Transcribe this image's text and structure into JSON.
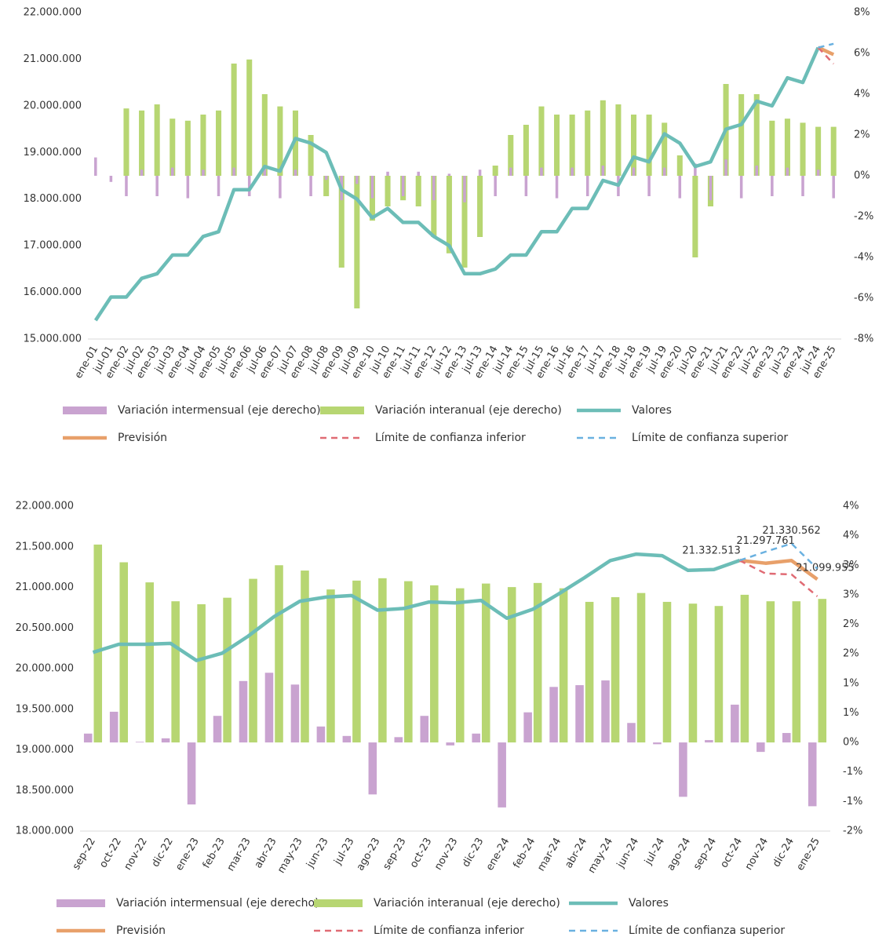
{
  "chart_data": [
    {
      "type": "combo",
      "bar_layout": "overlap",
      "categories": [
        "ene-01",
        "jul-01",
        "ene-02",
        "jul-02",
        "ene-03",
        "jul-03",
        "ene-04",
        "jul-04",
        "ene-05",
        "jul-05",
        "ene-06",
        "jul-06",
        "ene-07",
        "jul-07",
        "ene-08",
        "jul-08",
        "ene-09",
        "jul-09",
        "ene-10",
        "jul-10",
        "ene-11",
        "jul-11",
        "ene-12",
        "jul-12",
        "ene-13",
        "jul-13",
        "ene-14",
        "jul-14",
        "ene-15",
        "jul-15",
        "ene-16",
        "jul-16",
        "ene-17",
        "jul-17",
        "ene-18",
        "jul-18",
        "ene-19",
        "jul-19",
        "ene-20",
        "jul-20",
        "ene-21",
        "jul-21",
        "ene-22",
        "jul-22",
        "ene-23",
        "jul-23",
        "ene-24",
        "jul-24",
        "ene-25"
      ],
      "ylim": [
        15000000,
        22000000
      ],
      "yticks": [
        {
          "value": 15000000,
          "label": "15.000.000"
        },
        {
          "value": 16000000,
          "label": "16.000.000"
        },
        {
          "value": 17000000,
          "label": "17.000.000"
        },
        {
          "value": 18000000,
          "label": "18.000.000"
        },
        {
          "value": 19000000,
          "label": "19.000.000"
        },
        {
          "value": 20000000,
          "label": "20.000.000"
        },
        {
          "value": 21000000,
          "label": "21.000.000"
        },
        {
          "value": 22000000,
          "label": "22.000.000"
        }
      ],
      "y2lim": [
        -8,
        8
      ],
      "y2ticks": [
        {
          "value": -8,
          "label": "-8%"
        },
        {
          "value": -6,
          "label": "-6%"
        },
        {
          "value": -4,
          "label": "-4%"
        },
        {
          "value": -2,
          "label": "-2%"
        },
        {
          "value": 0,
          "label": "0%"
        },
        {
          "value": 2,
          "label": "2%"
        },
        {
          "value": 4,
          "label": "4%"
        },
        {
          "value": 6,
          "label": "6%"
        },
        {
          "value": 8,
          "label": "8%"
        }
      ],
      "series": [
        {
          "name": "Variación intermensual (eje derecho)",
          "type": "bar",
          "axis": "y2",
          "color": "#c9a3d0",
          "values": [
            0.9,
            -0.3,
            -1.0,
            0.3,
            -1.0,
            0.4,
            -1.1,
            0.3,
            -1.0,
            0.4,
            -1.0,
            0.5,
            -1.1,
            0.3,
            -1.0,
            -0.2,
            -1.2,
            -0.4,
            -1.1,
            0.2,
            -1.0,
            0.2,
            -1.2,
            0.1,
            -1.3,
            0.3,
            -1.0,
            0.4,
            -1.0,
            0.4,
            -1.1,
            0.4,
            -1.0,
            0.5,
            -1.0,
            0.4,
            -1.0,
            0.4,
            -1.1,
            0.6,
            -1.2,
            0.8,
            -1.1,
            0.5,
            -1.0,
            0.4,
            -1.0,
            0.3,
            -1.1
          ]
        },
        {
          "name": "Variación interanual (eje derecho)",
          "type": "bar",
          "axis": "y2",
          "color": "#b7d672",
          "values": [
            null,
            null,
            3.3,
            3.2,
            3.5,
            2.8,
            2.7,
            3.0,
            3.2,
            5.5,
            5.7,
            4.0,
            3.4,
            3.2,
            2.0,
            -1.0,
            -4.5,
            -6.5,
            -2.2,
            -1.5,
            -1.2,
            -1.5,
            -3.0,
            -3.8,
            -4.5,
            -3.0,
            0.5,
            2.0,
            2.5,
            3.4,
            3.0,
            3.0,
            3.2,
            3.7,
            3.5,
            3.0,
            3.0,
            2.6,
            1.0,
            -4.0,
            -1.5,
            4.5,
            4.0,
            4.0,
            2.7,
            2.8,
            2.6,
            2.4,
            2.4
          ]
        },
        {
          "name": "Valores",
          "type": "line",
          "color": "#6cbdb7",
          "values": [
            15400000,
            15900000,
            15900000,
            16300000,
            16400000,
            16800000,
            16800000,
            17200000,
            17300000,
            18200000,
            18200000,
            18700000,
            18600000,
            19300000,
            19200000,
            19000000,
            18200000,
            18000000,
            17600000,
            17800000,
            17500000,
            17500000,
            17200000,
            17000000,
            16400000,
            16400000,
            16500000,
            16800000,
            16800000,
            17300000,
            17300000,
            17800000,
            17800000,
            18400000,
            18300000,
            18900000,
            18800000,
            19400000,
            19200000,
            18700000,
            18800000,
            19500000,
            19600000,
            20100000,
            20000000,
            20600000,
            20500000,
            21250000,
            null
          ]
        },
        {
          "name": "Previsión",
          "type": "line",
          "color": "#e8a06a",
          "values": [
            null,
            null,
            null,
            null,
            null,
            null,
            null,
            null,
            null,
            null,
            null,
            null,
            null,
            null,
            null,
            null,
            null,
            null,
            null,
            null,
            null,
            null,
            null,
            null,
            null,
            null,
            null,
            null,
            null,
            null,
            null,
            null,
            null,
            null,
            null,
            null,
            null,
            null,
            null,
            null,
            null,
            null,
            null,
            null,
            null,
            null,
            null,
            21250000,
            21100000
          ]
        },
        {
          "name": "Límite de confianza inferior",
          "type": "line",
          "dash": true,
          "color": "#e06b74",
          "values": [
            null,
            null,
            null,
            null,
            null,
            null,
            null,
            null,
            null,
            null,
            null,
            null,
            null,
            null,
            null,
            null,
            null,
            null,
            null,
            null,
            null,
            null,
            null,
            null,
            null,
            null,
            null,
            null,
            null,
            null,
            null,
            null,
            null,
            null,
            null,
            null,
            null,
            null,
            null,
            null,
            null,
            null,
            null,
            null,
            null,
            null,
            null,
            21250000,
            20900000
          ]
        },
        {
          "name": "Límite de confianza superior",
          "type": "line",
          "dash": true,
          "color": "#6ab1e0",
          "values": [
            null,
            null,
            null,
            null,
            null,
            null,
            null,
            null,
            null,
            null,
            null,
            null,
            null,
            null,
            null,
            null,
            null,
            null,
            null,
            null,
            null,
            null,
            null,
            null,
            null,
            null,
            null,
            null,
            null,
            null,
            null,
            null,
            null,
            null,
            null,
            null,
            null,
            null,
            null,
            null,
            null,
            null,
            null,
            null,
            null,
            null,
            null,
            21250000,
            21330000
          ]
        }
      ]
    },
    {
      "type": "combo",
      "bar_layout": "grouped",
      "categories": [
        "sep-22",
        "oct-22",
        "nov-22",
        "dic-22",
        "ene-23",
        "feb-23",
        "mar-23",
        "abr-23",
        "may-23",
        "jun-23",
        "jul-23",
        "ago-23",
        "sep-23",
        "oct-23",
        "nov-23",
        "dic-23",
        "ene-24",
        "feb-24",
        "mar-24",
        "abr-24",
        "may-24",
        "jun-24",
        "jul-24",
        "ago-24",
        "sep-24",
        "oct-24",
        "nov-24",
        "dic-24",
        "ene-25"
      ],
      "ylim": [
        18000000,
        22000000
      ],
      "yticks": [
        {
          "value": 18000000,
          "label": "18.000.000"
        },
        {
          "value": 18500000,
          "label": "18.500.000"
        },
        {
          "value": 19000000,
          "label": "19.000.000"
        },
        {
          "value": 19500000,
          "label": "19.500.000"
        },
        {
          "value": 20000000,
          "label": "20.000.000"
        },
        {
          "value": 20500000,
          "label": "20.500.000"
        },
        {
          "value": 21000000,
          "label": "21.000.000"
        },
        {
          "value": 21500000,
          "label": "21.500.000"
        },
        {
          "value": 22000000,
          "label": "22.000.000"
        }
      ],
      "y2lim": [
        -1.5,
        4
      ],
      "y2ticks": [
        {
          "value": -1.5,
          "label": "-2%"
        },
        {
          "value": -1,
          "label": "-1%"
        },
        {
          "value": -0.5,
          "label": "-1%"
        },
        {
          "value": 0,
          "label": "0%"
        },
        {
          "value": 0.5,
          "label": "1%"
        },
        {
          "value": 1,
          "label": "1%"
        },
        {
          "value": 1.5,
          "label": "2%"
        },
        {
          "value": 2,
          "label": "2%"
        },
        {
          "value": 2.5,
          "label": "3%"
        },
        {
          "value": 3,
          "label": "3%"
        },
        {
          "value": 3.5,
          "label": "4%"
        },
        {
          "value": 4,
          "label": "4%"
        }
      ],
      "series": [
        {
          "name": "Variación intermensual (eje derecho)",
          "type": "bar",
          "axis": "y2",
          "color": "#c9a3d0",
          "values": [
            0.15,
            0.52,
            0.01,
            0.07,
            -1.05,
            0.45,
            1.04,
            1.18,
            0.98,
            0.27,
            0.11,
            -0.88,
            0.09,
            0.45,
            -0.05,
            0.15,
            -1.1,
            0.51,
            0.94,
            0.97,
            1.05,
            0.33,
            -0.03,
            -0.92,
            0.04,
            0.64,
            -0.16,
            0.16,
            -1.08
          ]
        },
        {
          "name": "Variación interanual (eje derecho)",
          "type": "bar",
          "axis": "y2",
          "color": "#b7d672",
          "values": [
            3.35,
            3.05,
            2.71,
            2.39,
            2.34,
            2.45,
            2.77,
            3.0,
            2.91,
            2.59,
            2.74,
            2.78,
            2.73,
            2.66,
            2.61,
            2.69,
            2.63,
            2.7,
            2.61,
            2.38,
            2.46,
            2.53,
            2.38,
            2.35,
            2.31,
            2.5,
            2.39,
            2.39,
            2.43
          ]
        },
        {
          "name": "Valores",
          "type": "line",
          "color": "#6cbdb7",
          "values": [
            20200000,
            20300000,
            20300000,
            20310000,
            20100000,
            20190000,
            20400000,
            20640000,
            20830000,
            20880000,
            20900000,
            20720000,
            20740000,
            20820000,
            20810000,
            20840000,
            20620000,
            20730000,
            20920000,
            21120000,
            21330000,
            21410000,
            21390000,
            21210000,
            21220000,
            21332513,
            null,
            null,
            null
          ]
        },
        {
          "name": "Previsión",
          "type": "line",
          "color": "#e8a06a",
          "values": [
            null,
            null,
            null,
            null,
            null,
            null,
            null,
            null,
            null,
            null,
            null,
            null,
            null,
            null,
            null,
            null,
            null,
            null,
            null,
            null,
            null,
            null,
            null,
            null,
            null,
            21332513,
            21297761,
            21330562,
            21099955
          ],
          "value_labels": [
            null,
            null,
            null,
            null,
            null,
            null,
            null,
            null,
            null,
            null,
            null,
            null,
            null,
            null,
            null,
            null,
            null,
            null,
            null,
            null,
            null,
            null,
            null,
            null,
            null,
            "21.332.513",
            "21.297.761",
            "21.330.562",
            "21.099.955"
          ]
        },
        {
          "name": "Límite de confianza inferior",
          "type": "line",
          "dash": true,
          "color": "#e06b74",
          "values": [
            null,
            null,
            null,
            null,
            null,
            null,
            null,
            null,
            null,
            null,
            null,
            null,
            null,
            null,
            null,
            null,
            null,
            null,
            null,
            null,
            null,
            null,
            null,
            null,
            null,
            21332513,
            21170000,
            21160000,
            20890000
          ]
        },
        {
          "name": "Límite de confianza superior",
          "type": "line",
          "dash": true,
          "color": "#6ab1e0",
          "values": [
            null,
            null,
            null,
            null,
            null,
            null,
            null,
            null,
            null,
            null,
            null,
            null,
            null,
            null,
            null,
            null,
            null,
            null,
            null,
            null,
            null,
            null,
            null,
            null,
            null,
            21332513,
            21440000,
            21540000,
            21230000
          ]
        }
      ]
    }
  ]
}
